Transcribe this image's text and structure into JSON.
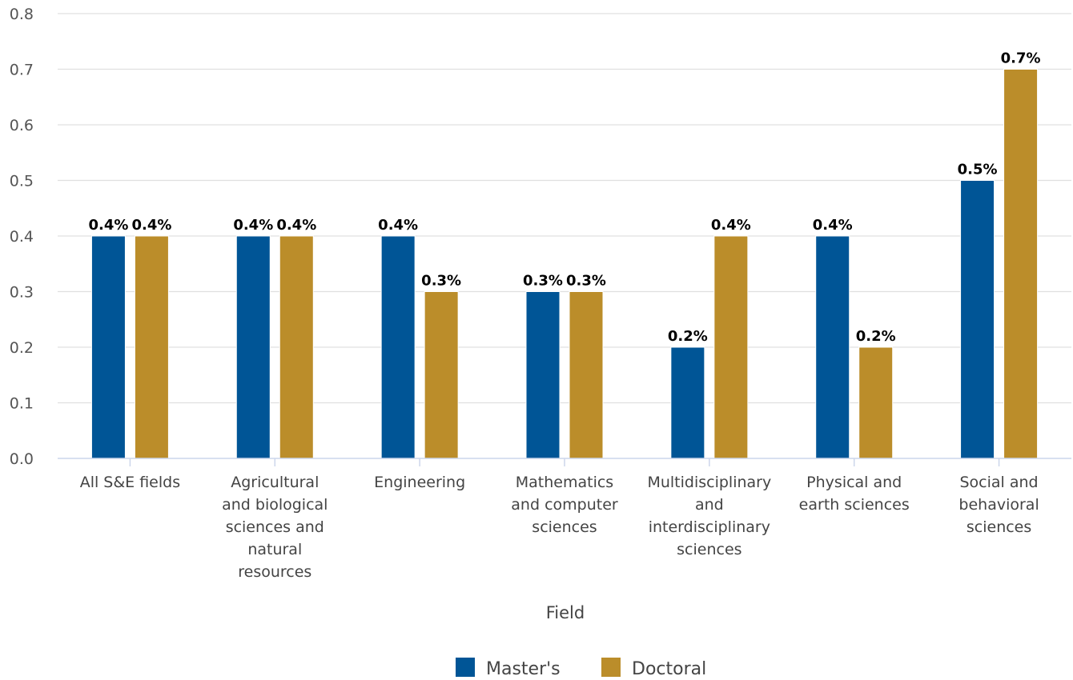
{
  "chart_data": {
    "type": "bar",
    "xlabel": "Field",
    "ylabel": "",
    "ylim": [
      0,
      0.8
    ],
    "yticks": [
      "0.0",
      "0.1",
      "0.2",
      "0.3",
      "0.4",
      "0.5",
      "0.6",
      "0.7",
      "0.8"
    ],
    "grid": true,
    "legend_position": "bottom-center",
    "categories": [
      [
        "All S&E fields"
      ],
      [
        "Agricultural",
        "and biological",
        "sciences and",
        "natural",
        "resources"
      ],
      [
        "Engineering"
      ],
      [
        "Mathematics",
        "and computer",
        "sciences"
      ],
      [
        "Multidisciplinary",
        "and",
        "interdisciplinary",
        "sciences"
      ],
      [
        "Physical and",
        "earth sciences"
      ],
      [
        "Social and",
        "behavioral",
        "sciences"
      ]
    ],
    "series": [
      {
        "name": "Master's",
        "color": "#005596",
        "values": [
          0.4,
          0.4,
          0.4,
          0.3,
          0.2,
          0.4,
          0.5
        ],
        "labels": [
          "0.4%",
          "0.4%",
          "0.4%",
          "0.3%",
          "0.2%",
          "0.4%",
          "0.5%"
        ]
      },
      {
        "name": "Doctoral",
        "color": "#BB8D2A",
        "values": [
          0.4,
          0.4,
          0.3,
          0.3,
          0.4,
          0.2,
          0.7
        ],
        "labels": [
          "0.4%",
          "0.4%",
          "0.3%",
          "0.3%",
          "0.4%",
          "0.2%",
          "0.7%"
        ]
      }
    ]
  }
}
